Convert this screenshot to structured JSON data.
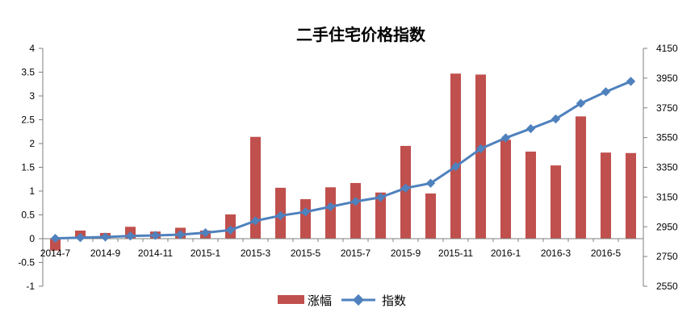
{
  "chart_data": {
    "type": "bar+line",
    "title": "二手住宅价格指数",
    "categories": [
      "2014-7",
      "2014-8",
      "2014-9",
      "2014-10",
      "2014-11",
      "2014-12",
      "2015-1",
      "2015-2",
      "2015-3",
      "2015-4",
      "2015-5",
      "2015-6",
      "2015-7",
      "2015-8",
      "2015-9",
      "2015-10",
      "2015-11",
      "2015-12",
      "2016-1",
      "2016-2",
      "2016-3",
      "2016-4",
      "2016-5",
      "2016-6"
    ],
    "x_tick_labels": [
      "2014-7",
      "2014-9",
      "2014-11",
      "2015-1",
      "2015-3",
      "2015-5",
      "2015-7",
      "2015-9",
      "2015-11",
      "2016-1",
      "2016-3",
      "2016-5"
    ],
    "series": [
      {
        "name": "涨幅",
        "type": "bar",
        "axis": "left",
        "color": "#C0504D",
        "values": [
          -0.25,
          0.17,
          0.12,
          0.25,
          0.15,
          0.23,
          0.17,
          0.51,
          2.14,
          1.07,
          0.83,
          1.08,
          1.17,
          0.97,
          1.95,
          0.95,
          3.47,
          3.45,
          2.08,
          1.83,
          1.54,
          2.57,
          1.81,
          1.8
        ]
      },
      {
        "name": "指数",
        "type": "line",
        "axis": "right",
        "color": "#4F81BD",
        "values": [
          2872,
          2877,
          2881,
          2888,
          2892,
          2897,
          2910,
          2928,
          2990,
          3025,
          3050,
          3085,
          3120,
          3148,
          3210,
          3243,
          3355,
          3475,
          3548,
          3610,
          3675,
          3780,
          3858,
          3928
        ]
      }
    ],
    "y_left": {
      "ticks": [
        "4",
        "3.5",
        "3",
        "2.5",
        "2",
        "1.5",
        "1",
        "0.5",
        "0",
        "-0.5",
        "-1"
      ],
      "ylim": [
        -1,
        4
      ]
    },
    "y_right": {
      "ticks": [
        "4150",
        "3950",
        "3750",
        "3550",
        "3350",
        "3150",
        "2950",
        "2750",
        "2550"
      ],
      "ylim": [
        2550,
        4150
      ]
    },
    "legend": {
      "position": "bottom"
    }
  }
}
